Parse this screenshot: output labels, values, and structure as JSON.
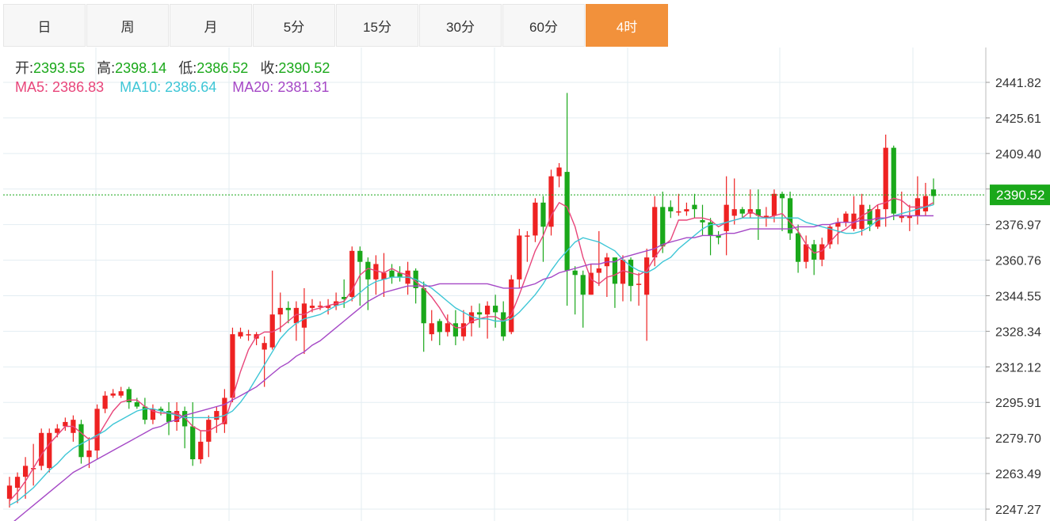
{
  "tabs": [
    "日",
    "周",
    "月",
    "5分",
    "15分",
    "30分",
    "60分",
    "4时"
  ],
  "active_tab": 7,
  "ohlc": {
    "open_label": "开:",
    "open": "2393.55",
    "high_label": "高:",
    "high": "2398.14",
    "low_label": "低:",
    "low": "2386.52",
    "close_label": "收:",
    "close": "2390.52"
  },
  "ma": {
    "ma5_label": "MA5:",
    "ma5": "2386.83",
    "ma10_label": "MA10:",
    "ma10": "2386.64",
    "ma20_label": "MA20:",
    "ma20": "2381.31"
  },
  "colors": {
    "up": "#ee2222",
    "down": "#1aa81a",
    "ma5": "#e8457a",
    "ma10": "#3ec6d6",
    "ma20": "#a548c6",
    "grid": "#e3edf2",
    "tab_active": "#f2913b"
  },
  "chart_data": {
    "type": "candlestick",
    "y_ticks": [
      "2441.82",
      "2425.61",
      "2409.40",
      "2393.19",
      "2376.97",
      "2360.76",
      "2344.55",
      "2328.34",
      "2312.12",
      "2295.91",
      "2279.70",
      "2263.49",
      "2247.27"
    ],
    "last_price_label": "2390.52",
    "last_price": 2390.52,
    "ylim": [
      2247.27,
      2441.82
    ],
    "candles": [
      [
        2252,
        2258,
        2248,
        2262
      ],
      [
        2257,
        2262,
        2250,
        2264
      ],
      [
        2262,
        2267,
        2252,
        2271
      ],
      [
        2266,
        2266,
        2258,
        2277
      ],
      [
        2267,
        2282,
        2265,
        2284
      ],
      [
        2266,
        2282,
        2264,
        2284
      ],
      [
        2282,
        2284,
        2280,
        2286
      ],
      [
        2285,
        2287,
        2283,
        2289
      ],
      [
        2282,
        2288,
        2278,
        2290
      ],
      [
        2286,
        2271,
        2268,
        2288
      ],
      [
        2271,
        2274,
        2266,
        2280
      ],
      [
        2274,
        2293,
        2270,
        2295
      ],
      [
        2293,
        2299,
        2291,
        2301
      ],
      [
        2299,
        2300,
        2298,
        2302
      ],
      [
        2299,
        2301,
        2298,
        2303
      ],
      [
        2302,
        2296,
        2293,
        2303
      ],
      [
        2296,
        2294,
        2293,
        2298
      ],
      [
        2294,
        2288,
        2286,
        2298
      ],
      [
        2288,
        2293,
        2286,
        2295
      ],
      [
        2293,
        2292,
        2290,
        2294
      ],
      [
        2292,
        2287,
        2281,
        2296
      ],
      [
        2287,
        2292,
        2283,
        2296
      ],
      [
        2292,
        2285,
        2275,
        2294
      ],
      [
        2285,
        2270,
        2267,
        2296
      ],
      [
        2270,
        2278,
        2268,
        2283
      ],
      [
        2278,
        2288,
        2271,
        2290
      ],
      [
        2288,
        2292,
        2282,
        2294
      ],
      [
        2286,
        2298,
        2282,
        2302
      ],
      [
        2298,
        2327,
        2296,
        2330
      ],
      [
        2326,
        2328,
        2325,
        2330
      ],
      [
        2327,
        2327,
        2324,
        2329
      ],
      [
        2325,
        2327,
        2322,
        2328
      ],
      [
        2320,
        2323,
        2303,
        2326
      ],
      [
        2321,
        2336,
        2320,
        2356
      ],
      [
        2336,
        2339,
        2328,
        2346
      ],
      [
        2339,
        2338,
        2332,
        2342
      ],
      [
        2332,
        2339,
        2324,
        2342
      ],
      [
        2330,
        2341,
        2318,
        2348
      ],
      [
        2339,
        2340,
        2337,
        2343
      ],
      [
        2340,
        2340,
        2338,
        2342
      ],
      [
        2339,
        2340,
        2336,
        2343
      ],
      [
        2340,
        2342,
        2338,
        2346
      ],
      [
        2344,
        2343,
        2339,
        2352
      ],
      [
        2344,
        2365,
        2342,
        2367
      ],
      [
        2365,
        2360,
        2340,
        2367
      ],
      [
        2360,
        2352,
        2338,
        2362
      ],
      [
        2352,
        2359,
        2345,
        2363
      ],
      [
        2352,
        2355,
        2344,
        2364
      ],
      [
        2356,
        2353,
        2350,
        2359
      ],
      [
        2355,
        2353,
        2351,
        2358
      ],
      [
        2350,
        2356,
        2345,
        2360
      ],
      [
        2356,
        2348,
        2341,
        2357
      ],
      [
        2348,
        2332,
        2319,
        2351
      ],
      [
        2327,
        2332,
        2324,
        2338
      ],
      [
        2333,
        2328,
        2322,
        2334
      ],
      [
        2328,
        2332,
        2326,
        2336
      ],
      [
        2332,
        2326,
        2322,
        2338
      ],
      [
        2326,
        2332,
        2324,
        2338
      ],
      [
        2332,
        2337,
        2326,
        2340
      ],
      [
        2337,
        2336,
        2330,
        2341
      ],
      [
        2336,
        2340,
        2325,
        2342
      ],
      [
        2340,
        2337,
        2330,
        2345
      ],
      [
        2337,
        2326,
        2324,
        2342
      ],
      [
        2328,
        2352,
        2327,
        2354
      ],
      [
        2352,
        2372,
        2348,
        2375
      ],
      [
        2372,
        2372,
        2360,
        2374
      ],
      [
        2372,
        2387,
        2369,
        2389
      ],
      [
        2387,
        2376,
        2360,
        2390
      ],
      [
        2376,
        2399,
        2372,
        2402
      ],
      [
        2399,
        2403,
        2394,
        2405
      ],
      [
        2401,
        2356,
        2340,
        2437
      ],
      [
        2356,
        2354,
        2336,
        2358
      ],
      [
        2354,
        2345,
        2330,
        2356
      ],
      [
        2345,
        2355,
        2345,
        2359
      ],
      [
        2355,
        2357,
        2349,
        2374
      ],
      [
        2358,
        2362,
        2344,
        2364
      ],
      [
        2362,
        2350,
        2339,
        2362
      ],
      [
        2350,
        2361,
        2342,
        2363
      ],
      [
        2361,
        2349,
        2342,
        2362
      ],
      [
        2350,
        2350,
        2340,
        2355
      ],
      [
        2345,
        2362,
        2324,
        2366
      ],
      [
        2362,
        2385,
        2358,
        2390
      ],
      [
        2385,
        2367,
        2364,
        2392
      ],
      [
        2385,
        2383,
        2380,
        2388
      ],
      [
        2383,
        2383,
        2381,
        2391
      ],
      [
        2383,
        2384,
        2381,
        2387
      ],
      [
        2386,
        2384,
        2380,
        2391
      ],
      [
        2379,
        2378,
        2372,
        2386
      ],
      [
        2378,
        2372,
        2363,
        2380
      ],
      [
        2372,
        2371,
        2368,
        2374
      ],
      [
        2374,
        2386,
        2363,
        2399
      ],
      [
        2381,
        2384,
        2377,
        2398
      ],
      [
        2384,
        2382,
        2380,
        2385
      ],
      [
        2382,
        2384,
        2380,
        2393
      ],
      [
        2384,
        2381,
        2370,
        2393
      ],
      [
        2380,
        2381,
        2376,
        2385
      ],
      [
        2381,
        2391,
        2378,
        2393
      ],
      [
        2391,
        2389,
        2374,
        2392
      ],
      [
        2389,
        2373,
        2370,
        2392
      ],
      [
        2373,
        2360,
        2355,
        2377
      ],
      [
        2360,
        2368,
        2357,
        2372
      ],
      [
        2368,
        2361,
        2354,
        2370
      ],
      [
        2361,
        2368,
        2358,
        2371
      ],
      [
        2368,
        2376,
        2366,
        2377
      ],
      [
        2376,
        2378,
        2368,
        2380
      ],
      [
        2378,
        2382,
        2376,
        2383
      ],
      [
        2375,
        2382,
        2374,
        2390
      ],
      [
        2375,
        2386,
        2372,
        2391
      ],
      [
        2384,
        2377,
        2374,
        2386
      ],
      [
        2376,
        2384,
        2375,
        2386
      ],
      [
        2384,
        2412,
        2376,
        2418
      ],
      [
        2412,
        2382,
        2379,
        2413
      ],
      [
        2380,
        2381,
        2378,
        2392
      ],
      [
        2380,
        2381,
        2374,
        2386
      ],
      [
        2381,
        2389,
        2377,
        2399
      ],
      [
        2383,
        2390,
        2381,
        2396
      ],
      [
        2393,
        2390,
        2386,
        2398
      ]
    ],
    "ma5": [
      2251,
      2255,
      2260,
      2266,
      2272,
      2277,
      2281,
      2285,
      2285,
      2282,
      2279,
      2280,
      2286,
      2292,
      2296,
      2297,
      2297,
      2294,
      2292,
      2291,
      2291,
      2291,
      2289,
      2285,
      2283,
      2283,
      2285,
      2287,
      2298,
      2310,
      2320,
      2326,
      2328,
      2328,
      2330,
      2333,
      2336,
      2336,
      2338,
      2339,
      2340,
      2341,
      2342,
      2347,
      2354,
      2357,
      2356,
      2355,
      2357,
      2355,
      2354,
      2351,
      2348,
      2344,
      2339,
      2333,
      2330,
      2330,
      2333,
      2334,
      2335,
      2335,
      2333,
      2336,
      2345,
      2355,
      2365,
      2372,
      2381,
      2387,
      2385,
      2376,
      2362,
      2352,
      2350,
      2353,
      2354,
      2356,
      2355,
      2354,
      2356,
      2362,
      2367,
      2370,
      2379,
      2379,
      2380,
      2380,
      2379,
      2376,
      2378,
      2379,
      2380,
      2383,
      2381,
      2380,
      2381,
      2382,
      2378,
      2374,
      2368,
      2364,
      2365,
      2369,
      2373,
      2375,
      2378,
      2381,
      2383,
      2386,
      2387,
      2389,
      2388,
      2385,
      2385,
      2385,
      2387
    ],
    "ma10": [
      2249,
      2251,
      2254,
      2257,
      2261,
      2265,
      2268,
      2272,
      2275,
      2277,
      2279,
      2281,
      2283,
      2286,
      2288,
      2290,
      2292,
      2293,
      2293,
      2292,
      2291,
      2290,
      2289,
      2289,
      2289,
      2289,
      2289,
      2290,
      2292,
      2296,
      2301,
      2307,
      2313,
      2319,
      2325,
      2329,
      2332,
      2334,
      2335,
      2336,
      2338,
      2340,
      2341,
      2343,
      2346,
      2349,
      2351,
      2352,
      2353,
      2353,
      2353,
      2352,
      2350,
      2348,
      2345,
      2342,
      2339,
      2337,
      2335,
      2334,
      2334,
      2333,
      2333,
      2334,
      2337,
      2341,
      2345,
      2350,
      2356,
      2361,
      2365,
      2369,
      2371,
      2370,
      2369,
      2367,
      2365,
      2361,
      2358,
      2356,
      2355,
      2357,
      2360,
      2362,
      2366,
      2369,
      2372,
      2375,
      2377,
      2377,
      2378,
      2379,
      2380,
      2380,
      2380,
      2380,
      2380,
      2380,
      2380,
      2380,
      2378,
      2377,
      2376,
      2375,
      2374,
      2373,
      2373,
      2374,
      2376,
      2379,
      2380,
      2381,
      2382,
      2383,
      2384,
      2385,
      2386
    ],
    "ma20": [
      2240,
      2243,
      2246,
      2249,
      2252,
      2255,
      2258,
      2261,
      2264,
      2266,
      2268,
      2270,
      2272,
      2274,
      2276,
      2278,
      2280,
      2282,
      2284,
      2285,
      2287,
      2288,
      2290,
      2291,
      2292,
      2293,
      2294,
      2295,
      2297,
      2299,
      2301,
      2303,
      2306,
      2309,
      2312,
      2314,
      2317,
      2319,
      2322,
      2324,
      2327,
      2330,
      2333,
      2336,
      2339,
      2342,
      2344,
      2346,
      2347,
      2348,
      2349,
      2349,
      2349,
      2349,
      2350,
      2350,
      2350,
      2350,
      2350,
      2350,
      2350,
      2349,
      2348,
      2348,
      2348,
      2349,
      2350,
      2352,
      2353,
      2355,
      2356,
      2357,
      2358,
      2359,
      2359,
      2360,
      2360,
      2362,
      2363,
      2364,
      2365,
      2366,
      2368,
      2369,
      2370,
      2371,
      2371,
      2372,
      2372,
      2372,
      2373,
      2373,
      2374,
      2375,
      2375,
      2375,
      2375,
      2375,
      2375,
      2376,
      2376,
      2376,
      2377,
      2377,
      2378,
      2378,
      2378,
      2379,
      2379,
      2380,
      2380,
      2381,
      2381,
      2381,
      2381,
      2381,
      2381
    ]
  }
}
